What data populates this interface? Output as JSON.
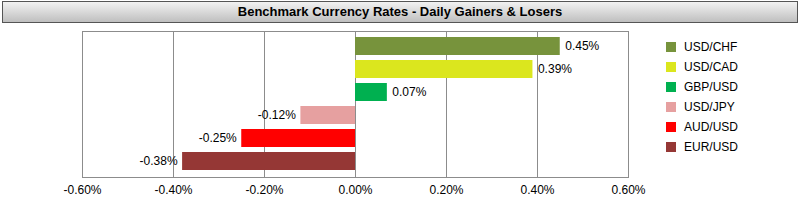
{
  "chart_data": {
    "type": "bar",
    "orientation": "horizontal",
    "title": "Benchmark Currency Rates - Daily Gainers & Losers",
    "categories": [
      "USD/CHF",
      "USD/CAD",
      "GBP/USD",
      "USD/JPY",
      "AUD/USD",
      "EUR/USD"
    ],
    "values": [
      0.45,
      0.39,
      0.07,
      -0.12,
      -0.25,
      -0.38
    ],
    "value_labels": [
      "0.45%",
      "0.39%",
      "0.07%",
      "-0.12%",
      "-0.25%",
      "-0.38%"
    ],
    "colors": [
      "#77933c",
      "#dbe61e",
      "#00b050",
      "#e6a0a0",
      "#ff0000",
      "#953735"
    ],
    "xlim": [
      -0.6,
      0.6
    ],
    "xticks": [
      {
        "value": -0.6,
        "label": "-0.60%"
      },
      {
        "value": -0.4,
        "label": "-0.40%"
      },
      {
        "value": -0.2,
        "label": "-0.20%"
      },
      {
        "value": 0,
        "label": "0.00%"
      },
      {
        "value": 0.2,
        "label": "0.20%"
      },
      {
        "value": 0.4,
        "label": "0.40%"
      },
      {
        "value": 0.6,
        "label": "0.60%"
      }
    ],
    "grid": true,
    "data_labels": true,
    "tick_labels": "x",
    "legend": "right"
  }
}
